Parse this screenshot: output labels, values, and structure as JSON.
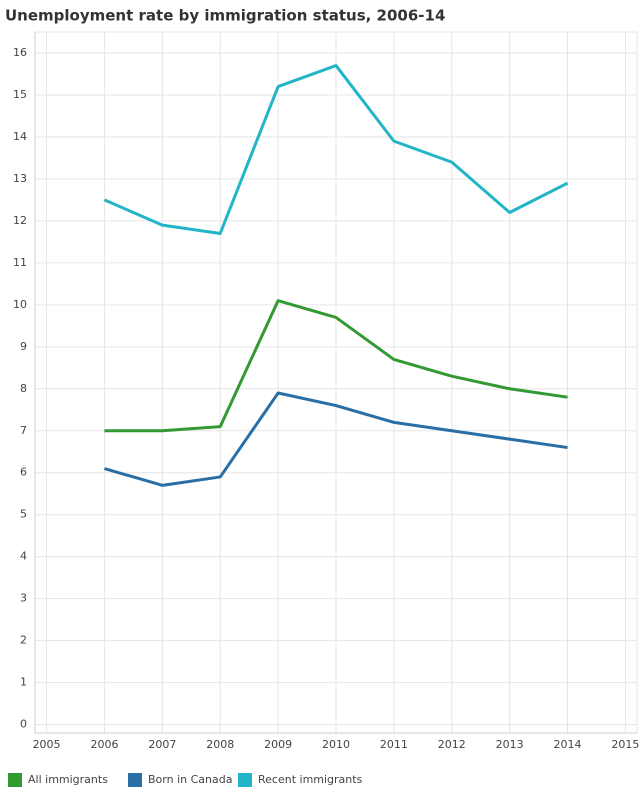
{
  "chart_data": {
    "type": "line",
    "title": "Unemployment rate by immigration status, 2006-14",
    "x": [
      2006,
      2007,
      2008,
      2009,
      2010,
      2011,
      2012,
      2013,
      2014
    ],
    "series": [
      {
        "name": "All immigrants",
        "color": "#339933",
        "values": [
          7.0,
          7.0,
          7.1,
          10.1,
          9.7,
          8.7,
          8.3,
          8.0,
          7.8
        ]
      },
      {
        "name": "Born in Canada",
        "color": "#2a6ea6",
        "values": [
          6.1,
          5.7,
          5.9,
          7.9,
          7.6,
          7.2,
          7.0,
          6.8,
          6.6
        ]
      },
      {
        "name": "Recent immigrants",
        "color": "#22b5c8",
        "values": [
          12.5,
          11.9,
          11.7,
          15.2,
          15.7,
          13.9,
          13.4,
          12.2,
          12.9
        ]
      }
    ],
    "xlim": [
      2004.8,
      2015.2
    ],
    "xticks": [
      2005,
      2006,
      2007,
      2008,
      2009,
      2010,
      2011,
      2012,
      2013,
      2014,
      2015
    ],
    "ylim": [
      -0.2,
      16.5
    ],
    "yticks": [
      0,
      1,
      2,
      3,
      4,
      5,
      6,
      7,
      8,
      9,
      10,
      11,
      12,
      13,
      14,
      15,
      16
    ],
    "grid": true,
    "legend": "bottom"
  }
}
